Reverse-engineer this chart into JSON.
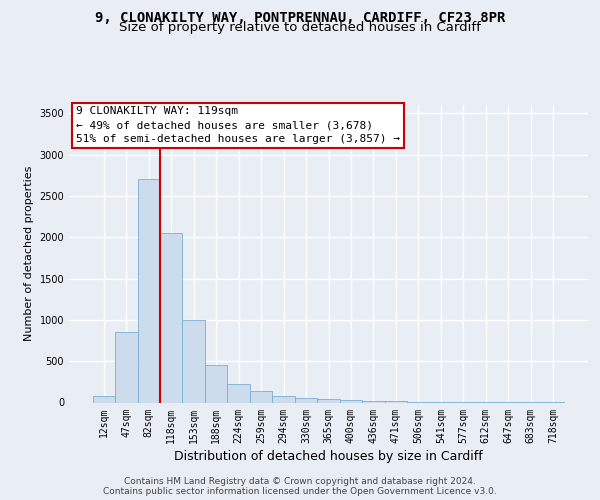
{
  "title": "9, CLONAKILTY WAY, PONTPRENNAU, CARDIFF, CF23 8PR",
  "subtitle": "Size of property relative to detached houses in Cardiff",
  "xlabel": "Distribution of detached houses by size in Cardiff",
  "ylabel": "Number of detached properties",
  "categories": [
    "12sqm",
    "47sqm",
    "82sqm",
    "118sqm",
    "153sqm",
    "188sqm",
    "224sqm",
    "259sqm",
    "294sqm",
    "330sqm",
    "365sqm",
    "400sqm",
    "436sqm",
    "471sqm",
    "506sqm",
    "541sqm",
    "577sqm",
    "612sqm",
    "647sqm",
    "683sqm",
    "718sqm"
  ],
  "values": [
    75,
    850,
    2700,
    2050,
    1000,
    450,
    220,
    140,
    75,
    50,
    40,
    30,
    20,
    15,
    8,
    6,
    4,
    3,
    2,
    1,
    1
  ],
  "bar_color": "#ccdcec",
  "bar_edge_color": "#7bafd4",
  "bar_edge_width": 0.6,
  "marker_index": 3,
  "marker_color": "#cc0000",
  "ylim": [
    0,
    3600
  ],
  "yticks": [
    0,
    500,
    1000,
    1500,
    2000,
    2500,
    3000,
    3500
  ],
  "annotation_title": "9 CLONAKILTY WAY: 119sqm",
  "annotation_line1": "← 49% of detached houses are smaller (3,678)",
  "annotation_line2": "51% of semi-detached houses are larger (3,857) →",
  "annotation_box_facecolor": "#ffffff",
  "annotation_border_color": "#cc0000",
  "footer_line1": "Contains HM Land Registry data © Crown copyright and database right 2024.",
  "footer_line2": "Contains public sector information licensed under the Open Government Licence v3.0.",
  "background_color": "#e8eef4",
  "plot_background": "#e8eef4",
  "grid_color": "#ffffff",
  "title_fontsize": 10,
  "subtitle_fontsize": 9.5,
  "ylabel_fontsize": 8,
  "xlabel_fontsize": 9,
  "tick_fontsize": 7,
  "annotation_fontsize": 8,
  "footer_fontsize": 6.5
}
